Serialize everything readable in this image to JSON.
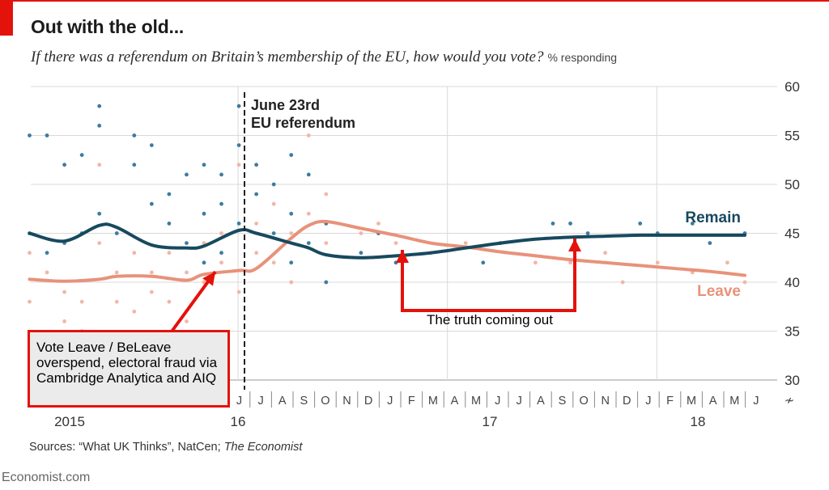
{
  "header": {
    "title": "Out with the old...",
    "subtitle": "If there was a referendum on Britain’s membership of the EU, how would you vote?",
    "unit": "% responding"
  },
  "footer": {
    "sources_prefix": "Sources: “What UK Thinks”, NatCen; ",
    "sources_italic": "The Economist",
    "credit": "Economist.com"
  },
  "annotations": {
    "referendum_line1": "June 23rd",
    "referendum_line2": "EU referendum",
    "truth_label": "The truth coming out",
    "fraud_note": "Vote Leave / BeLeave overspend, electoral fraud via Cambridge Analytica and AIQ"
  },
  "colors": {
    "remain": "#17495f",
    "leave": "#e8927a",
    "remain_dots": "#3e7ba0",
    "leave_dots": "#f2b6a5",
    "accent_red": "#e3120b"
  },
  "chart_data": {
    "type": "line",
    "ylim": [
      30,
      60
    ],
    "y_ticks": [
      30,
      35,
      40,
      45,
      50,
      55,
      60
    ],
    "y_axis_side": "right",
    "y_axis_break": true,
    "x_month_ticks": [
      "J",
      "J",
      "A",
      "S",
      "O",
      "N",
      "D",
      "J",
      "F",
      "M",
      "A",
      "M",
      "J",
      "J",
      "A",
      "S",
      "O",
      "N",
      "D",
      "J",
      "F",
      "M",
      "A",
      "M",
      "J"
    ],
    "x_year_labels": [
      "2015",
      "16",
      "17",
      "18"
    ],
    "grid": true,
    "referendum_date": "2016-06-23",
    "series": [
      {
        "name": "Remain",
        "x": [
          "2015-01",
          "2015-03",
          "2015-05",
          "2015-06",
          "2015-08",
          "2015-10",
          "2015-11",
          "2016-01",
          "2016-02",
          "2016-04",
          "2016-05",
          "2016-06",
          "2016-08",
          "2016-10",
          "2016-12",
          "2017-02",
          "2017-04",
          "2017-06",
          "2017-08",
          "2017-10",
          "2017-12",
          "2018-02",
          "2018-04",
          "2018-06"
        ],
        "values": [
          45,
          44.2,
          45.8,
          45.6,
          43.8,
          43.5,
          43.7,
          45.3,
          45,
          44,
          43.5,
          42.8,
          42.5,
          42.7,
          43.0,
          43.5,
          44.0,
          44.4,
          44.6,
          44.7,
          44.8,
          44.8,
          44.8,
          44.8
        ]
      },
      {
        "name": "Leave",
        "x": [
          "2015-01",
          "2015-03",
          "2015-05",
          "2015-06",
          "2015-08",
          "2015-10",
          "2015-11",
          "2016-01",
          "2016-02",
          "2016-04",
          "2016-05",
          "2016-06",
          "2016-08",
          "2016-10",
          "2016-12",
          "2017-02",
          "2017-04",
          "2017-06",
          "2017-08",
          "2017-10",
          "2017-12",
          "2018-02",
          "2018-04",
          "2018-06"
        ],
        "values": [
          40.3,
          40.1,
          40.3,
          40.6,
          40.6,
          40.2,
          40.8,
          41.2,
          41.4,
          44.5,
          45.8,
          46.2,
          45.5,
          44.8,
          44.0,
          43.6,
          43.1,
          42.7,
          42.3,
          42.0,
          41.7,
          41.4,
          41.1,
          40.7
        ]
      }
    ],
    "scatter_polls": {
      "remain": [
        [
          "2015-01",
          55
        ],
        [
          "2015-01",
          45
        ],
        [
          "2015-02",
          43
        ],
        [
          "2015-02",
          55
        ],
        [
          "2015-03",
          52
        ],
        [
          "2015-03",
          44
        ],
        [
          "2015-04",
          53
        ],
        [
          "2015-04",
          45
        ],
        [
          "2015-05",
          58
        ],
        [
          "2015-05",
          56
        ],
        [
          "2015-05",
          47
        ],
        [
          "2015-06",
          45
        ],
        [
          "2015-07",
          55
        ],
        [
          "2015-07",
          52
        ],
        [
          "2015-08",
          54
        ],
        [
          "2015-08",
          48
        ],
        [
          "2015-09",
          46
        ],
        [
          "2015-09",
          49
        ],
        [
          "2015-10",
          51
        ],
        [
          "2015-10",
          44
        ],
        [
          "2015-11",
          52
        ],
        [
          "2015-11",
          47
        ],
        [
          "2015-11",
          42
        ],
        [
          "2015-12",
          51
        ],
        [
          "2015-12",
          48
        ],
        [
          "2015-12",
          43
        ],
        [
          "2016-01",
          54
        ],
        [
          "2016-01",
          58
        ],
        [
          "2016-01",
          46
        ],
        [
          "2016-02",
          52
        ],
        [
          "2016-02",
          49
        ],
        [
          "2016-03",
          50
        ],
        [
          "2016-03",
          45
        ],
        [
          "2016-04",
          53
        ],
        [
          "2016-04",
          47
        ],
        [
          "2016-04",
          42
        ],
        [
          "2016-05",
          51
        ],
        [
          "2016-05",
          44
        ],
        [
          "2016-06",
          46
        ],
        [
          "2016-06",
          40
        ],
        [
          "2016-08",
          43
        ],
        [
          "2016-09",
          45
        ],
        [
          "2016-10",
          42
        ],
        [
          "2017-03",
          42
        ],
        [
          "2017-04",
          44
        ],
        [
          "2017-07",
          46
        ],
        [
          "2017-08",
          46
        ],
        [
          "2017-09",
          45
        ],
        [
          "2017-12",
          46
        ],
        [
          "2018-01",
          45
        ],
        [
          "2018-03",
          46
        ],
        [
          "2018-04",
          44
        ],
        [
          "2018-06",
          45
        ]
      ],
      "leave": [
        [
          "2015-01",
          43
        ],
        [
          "2015-01",
          38
        ],
        [
          "2015-02",
          41
        ],
        [
          "2015-03",
          36
        ],
        [
          "2015-03",
          39
        ],
        [
          "2015-04",
          38
        ],
        [
          "2015-04",
          35
        ],
        [
          "2015-05",
          44
        ],
        [
          "2015-05",
          52
        ],
        [
          "2015-06",
          38
        ],
        [
          "2015-06",
          41
        ],
        [
          "2015-07",
          37
        ],
        [
          "2015-07",
          43
        ],
        [
          "2015-08",
          39
        ],
        [
          "2015-08",
          41
        ],
        [
          "2015-09",
          38
        ],
        [
          "2015-09",
          43
        ],
        [
          "2015-10",
          41
        ],
        [
          "2015-10",
          36
        ],
        [
          "2015-11",
          40
        ],
        [
          "2015-11",
          44
        ],
        [
          "2015-12",
          45
        ],
        [
          "2015-12",
          42
        ],
        [
          "2016-01",
          39
        ],
        [
          "2016-01",
          52
        ],
        [
          "2016-02",
          43
        ],
        [
          "2016-02",
          46
        ],
        [
          "2016-03",
          42
        ],
        [
          "2016-03",
          48
        ],
        [
          "2016-04",
          45
        ],
        [
          "2016-04",
          40
        ],
        [
          "2016-05",
          55
        ],
        [
          "2016-05",
          47
        ],
        [
          "2016-06",
          49
        ],
        [
          "2016-06",
          44
        ],
        [
          "2016-08",
          45
        ],
        [
          "2016-09",
          46
        ],
        [
          "2016-10",
          44
        ],
        [
          "2016-12",
          43
        ],
        [
          "2017-02",
          44
        ],
        [
          "2017-04",
          44
        ],
        [
          "2017-06",
          42
        ],
        [
          "2017-08",
          42
        ],
        [
          "2017-10",
          43
        ],
        [
          "2017-11",
          40
        ],
        [
          "2018-01",
          42
        ],
        [
          "2018-03",
          41
        ],
        [
          "2018-05",
          42
        ],
        [
          "2018-06",
          40
        ]
      ]
    }
  }
}
